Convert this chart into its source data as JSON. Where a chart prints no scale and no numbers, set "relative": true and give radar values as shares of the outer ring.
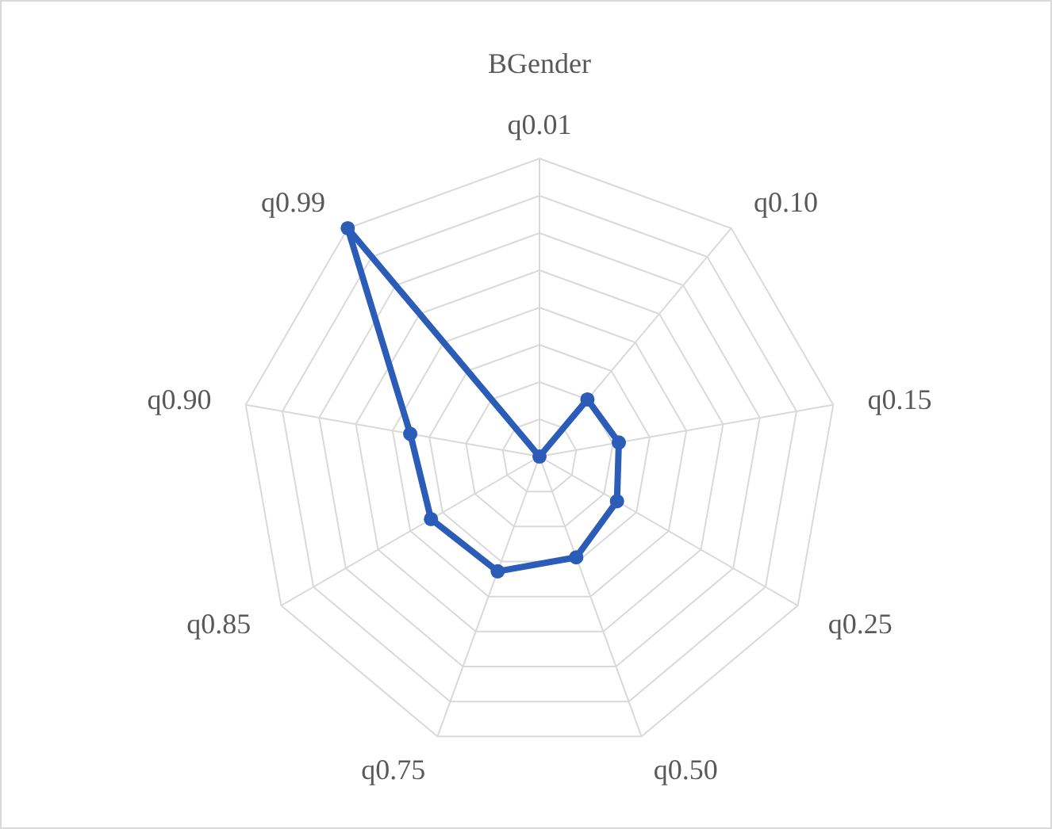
{
  "chart_data": {
    "type": "radar",
    "title": "BGender",
    "relative": true,
    "categories": [
      "q0.01",
      "q0.10",
      "q0.15",
      "q0.25",
      "q0.50",
      "q0.75",
      "q0.85",
      "q0.90",
      "q0.99"
    ],
    "series": [
      {
        "color": "#2a5cb8",
        "values": [
          0,
          0.25,
          0.27,
          0.3,
          0.36,
          0.41,
          0.42,
          0.44,
          1
        ]
      }
    ],
    "marker": "circle",
    "grid": true
  }
}
